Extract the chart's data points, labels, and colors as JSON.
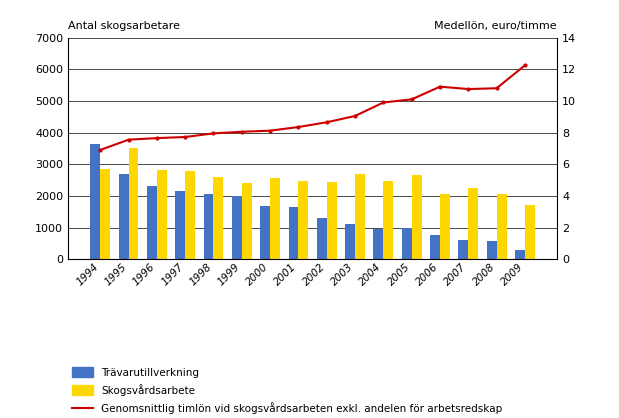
{
  "years": [
    "1994",
    "1995",
    "1996",
    "1997",
    "1998",
    "1999",
    "2000",
    "2001",
    "2002",
    "2003",
    "2004",
    "2005",
    "2006",
    "2007",
    "2008",
    "2009"
  ],
  "travarutillverkning": [
    3650,
    2700,
    2300,
    2150,
    2050,
    2000,
    1680,
    1650,
    1300,
    1100,
    950,
    1000,
    750,
    620,
    580,
    280
  ],
  "skogsvardsarbete": [
    2850,
    3520,
    2820,
    2770,
    2600,
    2400,
    2550,
    2480,
    2440,
    2700,
    2480,
    2650,
    2050,
    2250,
    2050,
    1720
  ],
  "medellon": [
    6.9,
    7.55,
    7.65,
    7.72,
    7.95,
    8.05,
    8.12,
    8.35,
    8.65,
    9.05,
    9.9,
    10.1,
    10.9,
    10.75,
    10.8,
    12.25
  ],
  "bar_color_tra": "#4472C4",
  "bar_color_skog": "#FFD700",
  "line_color": "#CC0000",
  "ylabel_left": "Antal skogsarbetare",
  "ylabel_right": "Medellön, euro/timme",
  "ylim_left": [
    0,
    7000
  ],
  "ylim_right": [
    0,
    14
  ],
  "yticks_left": [
    0,
    1000,
    2000,
    3000,
    4000,
    5000,
    6000,
    7000
  ],
  "yticks_right": [
    0,
    2,
    4,
    6,
    8,
    10,
    12,
    14
  ],
  "legend_tra": "Trävarutillverkning",
  "legend_skog": "Skogsvårdsarbete",
  "legend_line": "Genomsnittlig timlön vid skogsvårdsarbeten exkl. andelen för arbetsredskap",
  "background_color": "#ffffff",
  "grid_color": "#000000",
  "fig_width": 6.19,
  "fig_height": 4.18,
  "dpi": 100
}
